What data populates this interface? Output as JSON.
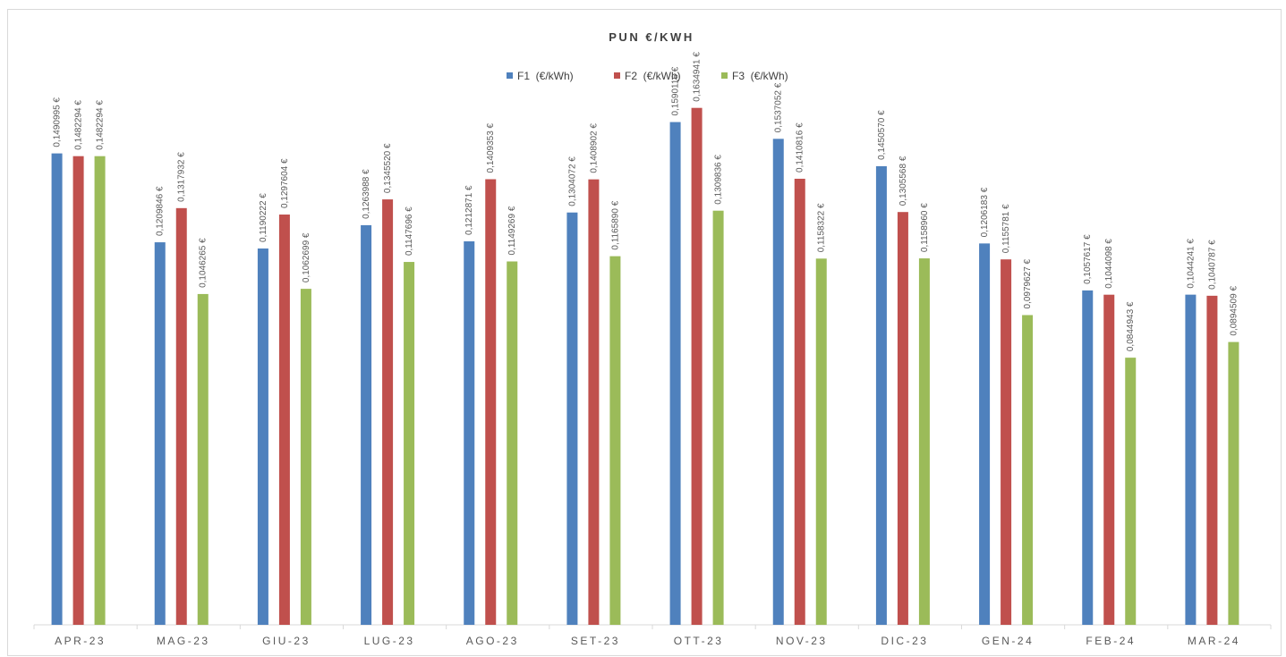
{
  "chart_data": {
    "type": "bar",
    "title": "PUN €/KWH",
    "xlabel": "",
    "ylabel": "",
    "ylim": [
      0,
      0.175
    ],
    "grid": false,
    "legend_position": "top",
    "categories": [
      "APR-23",
      "MAG-23",
      "GIU-23",
      "LUG-23",
      "AGO-23",
      "SET-23",
      "OTT-23",
      "NOV-23",
      "DIC-23",
      "GEN-24",
      "FEB-24",
      "MAR-24"
    ],
    "series": [
      {
        "name": "F1  (€/kWh)",
        "color": "#4f81bd",
        "values": [
          0.1490995,
          0.1209846,
          0.1190222,
          0.1263988,
          0.1212871,
          0.1304072,
          0.1590116,
          0.1537052,
          0.145057,
          0.1206183,
          0.1057617,
          0.1044241
        ],
        "labels": [
          "0,1490995 €",
          "0,1209846 €",
          "0,1190222 €",
          "0,1263988 €",
          "0,1212871 €",
          "0,1304072 €",
          "0,1590116 €",
          "0,1537052 €",
          "0,1450570 €",
          "0,1206183 €",
          "0,1057617 €",
          "0,1044241 €"
        ]
      },
      {
        "name": "F2  (€/kWh)",
        "color": "#c0504d",
        "values": [
          0.1482294,
          0.1317932,
          0.1297604,
          0.134552,
          0.1409353,
          0.1408902,
          0.1634941,
          0.1410816,
          0.1305568,
          0.1155781,
          0.1044098,
          0.1040787
        ],
        "labels": [
          "0,1482294 €",
          "0,1317932 €",
          "0,1297604 €",
          "0,1345520 €",
          "0,1409353 €",
          "0,1408902 €",
          "0,1634941 €",
          "0,1410816 €",
          "0,1305568 €",
          "0,1155781 €",
          "0,1044098 €",
          "0,1040787 €"
        ]
      },
      {
        "name": "F3  (€/kWh)",
        "color": "#9bbb59",
        "values": [
          0.1482294,
          0.1046265,
          0.1062699,
          0.1147696,
          0.1149269,
          0.116589,
          0.1309836,
          0.1158322,
          0.115896,
          0.0979627,
          0.0844943,
          0.0894509
        ],
        "labels": [
          "0,1482294 €",
          "0,1046265 €",
          "0,1062699 €",
          "0,1147696 €",
          "0,1149269 €",
          "0,1165890 €",
          "0,1309836 €",
          "0,1158322 €",
          "0,1158960 €",
          "0,0979627 €",
          "0,0844943 €",
          "0,0894509 €"
        ]
      }
    ]
  }
}
